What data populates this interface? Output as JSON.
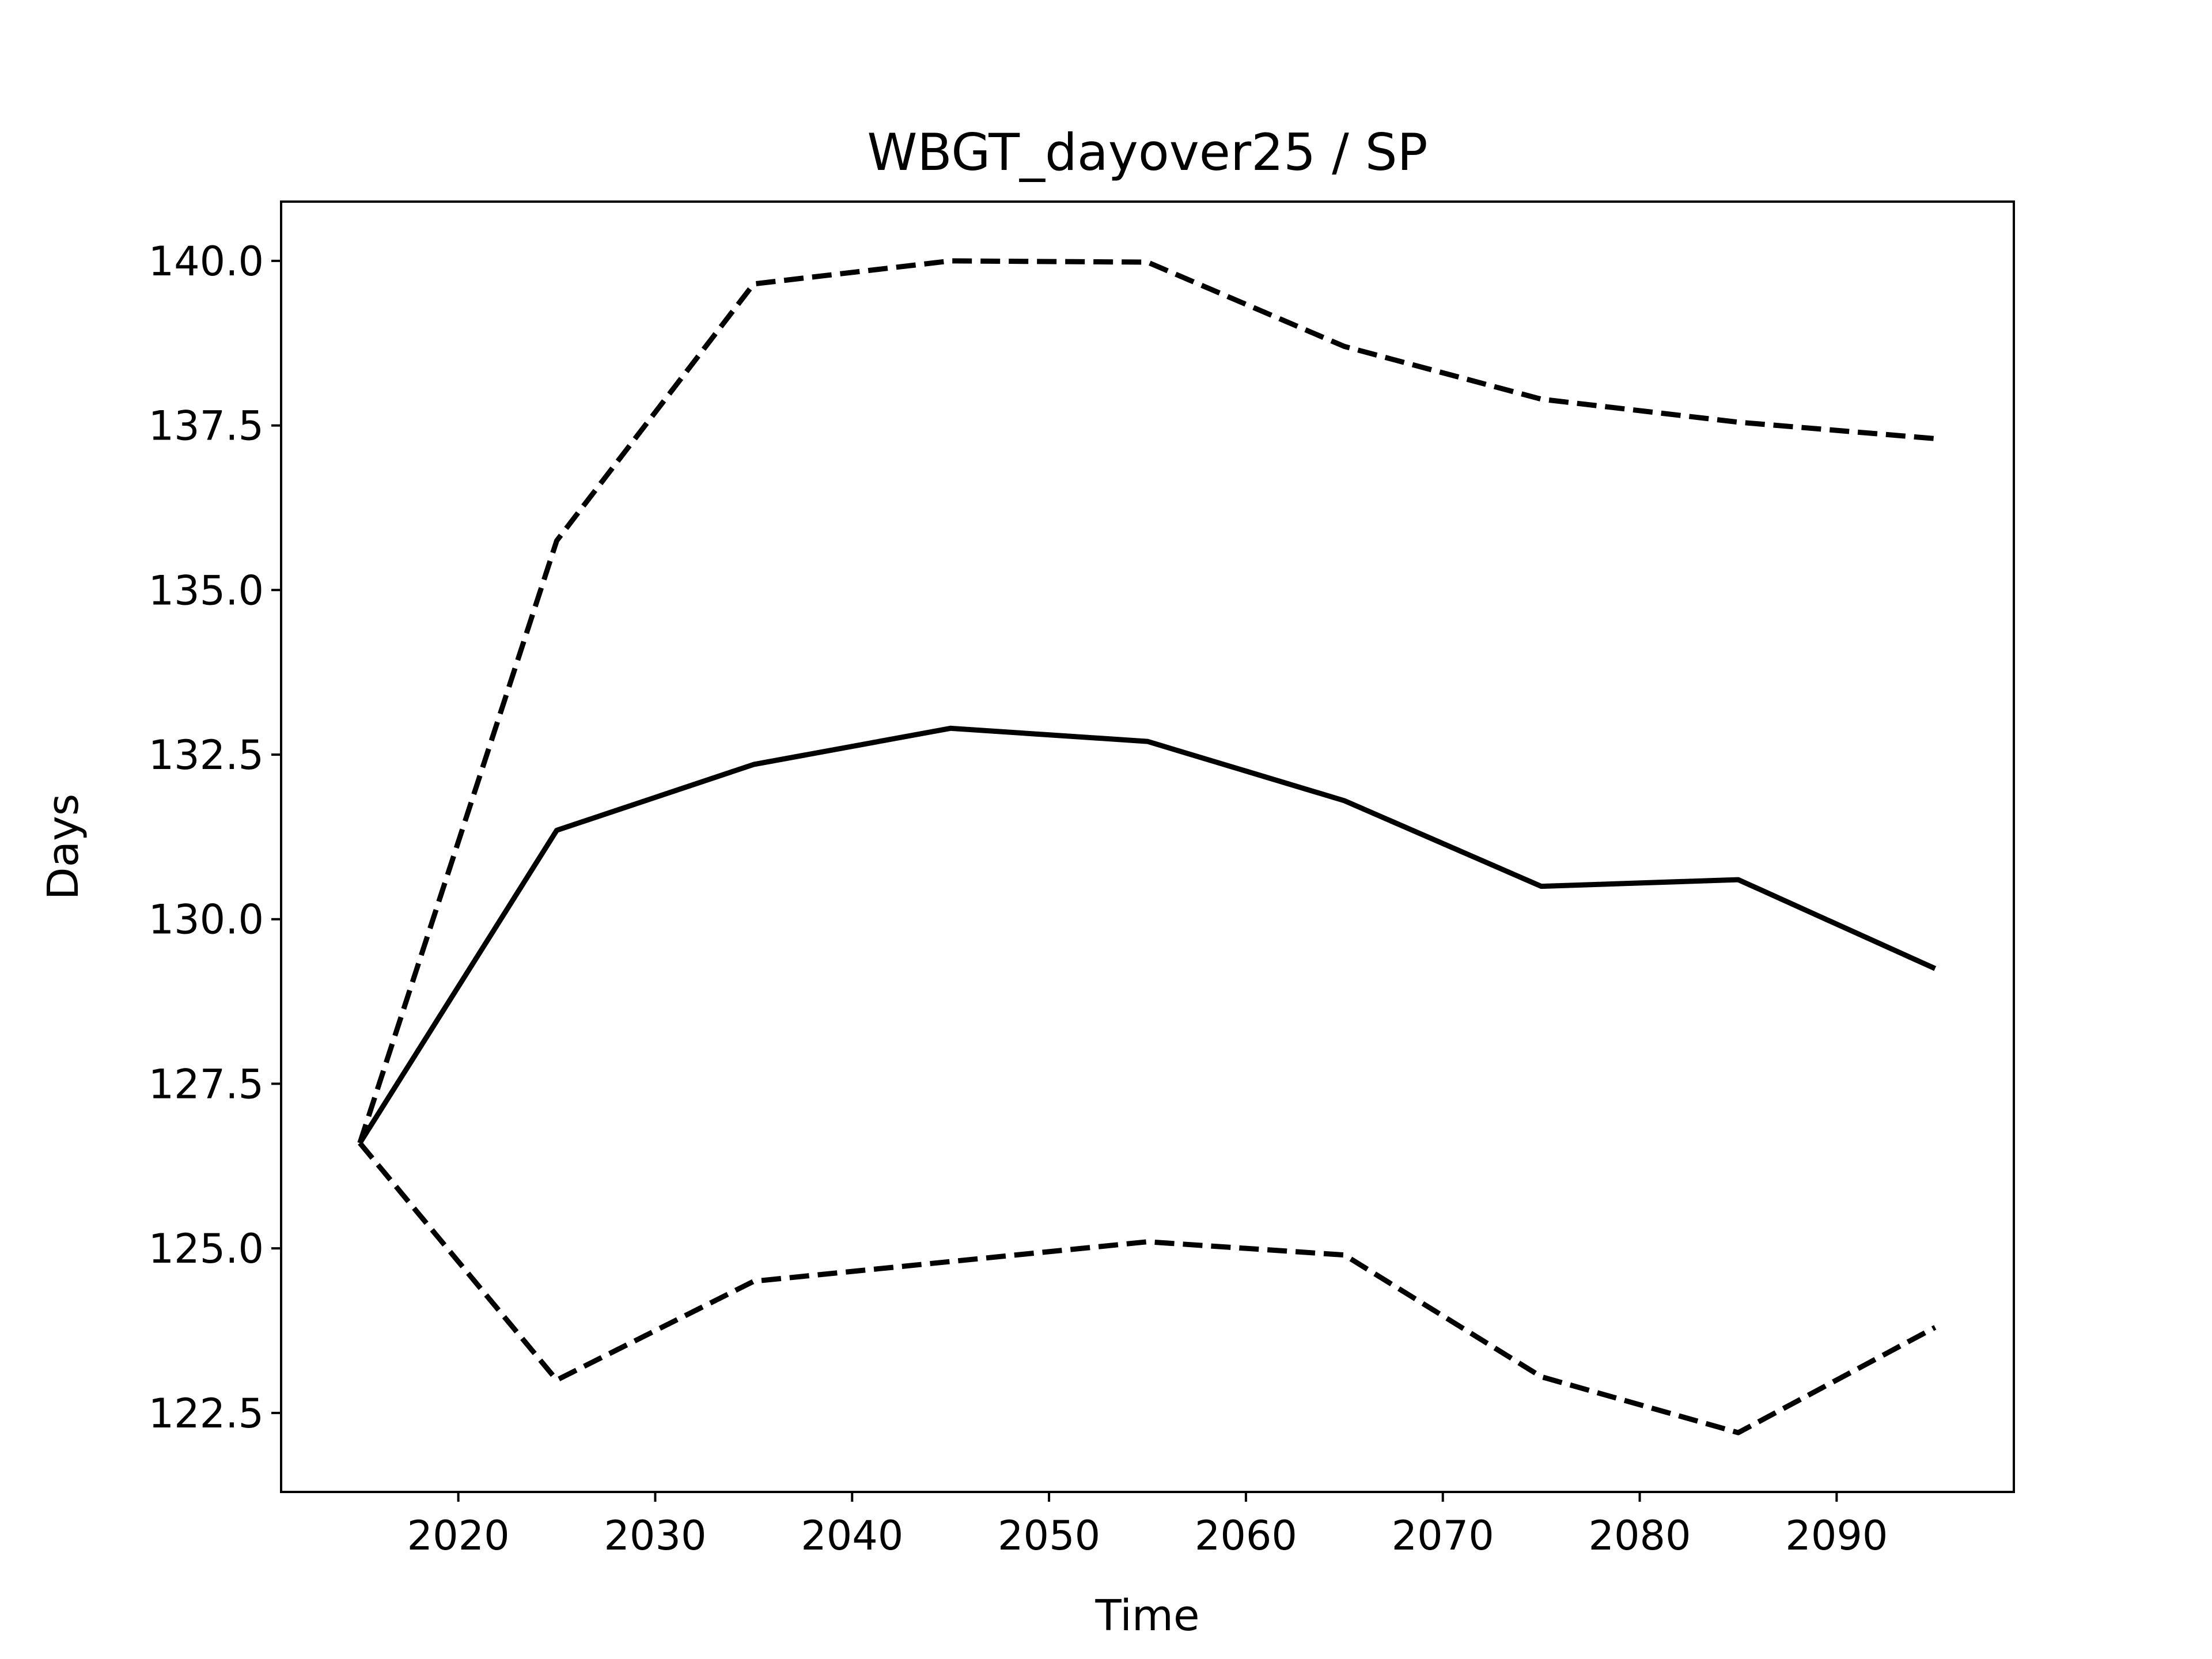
{
  "chart_data": {
    "type": "line",
    "title": "WBGT_dayover25 / SP",
    "xlabel": "Time",
    "ylabel": "Days",
    "xlim": [
      2011,
      2099
    ],
    "ylim": [
      121.3,
      140.9
    ],
    "xticks": [
      2020,
      2030,
      2040,
      2050,
      2060,
      2070,
      2080,
      2090
    ],
    "yticks": [
      122.5,
      125.0,
      127.5,
      130.0,
      132.5,
      135.0,
      137.5,
      140.0
    ],
    "ytick_labels": [
      "122.5",
      "125.0",
      "127.5",
      "130.0",
      "132.5",
      "135.0",
      "137.5",
      "140.0"
    ],
    "grid": false,
    "line_color": "#000000",
    "x": [
      2015,
      2025,
      2035,
      2045,
      2055,
      2065,
      2075,
      2085,
      2095
    ],
    "series": [
      {
        "style": "solid",
        "values": [
          126.6,
          131.35,
          132.35,
          132.9,
          132.7,
          131.8,
          130.5,
          130.6,
          129.25
        ]
      },
      {
        "style": "dashed",
        "values": [
          126.6,
          135.75,
          139.65,
          140.0,
          139.98,
          138.7,
          137.9,
          137.55,
          137.3
        ]
      },
      {
        "style": "dashed",
        "values": [
          126.6,
          123.0,
          124.5,
          124.8,
          125.1,
          124.9,
          123.05,
          122.2,
          123.8
        ]
      }
    ]
  }
}
